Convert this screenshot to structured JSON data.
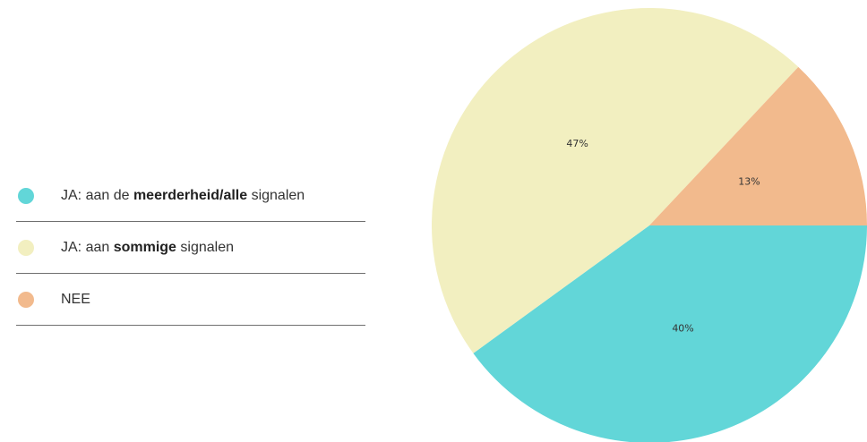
{
  "chart_data": {
    "type": "pie",
    "slices": [
      {
        "label_parts": [
          "JA: aan de ",
          "meerderheid/alle",
          " signalen"
        ],
        "value": 40,
        "value_label": "40%",
        "color": "#62d6d8"
      },
      {
        "label_parts": [
          "JA: aan ",
          "sommige",
          " signalen"
        ],
        "value": 47,
        "value_label": "47%",
        "color": "#f2efc0"
      },
      {
        "label_parts": [
          "NEE",
          "",
          ""
        ],
        "value": 13,
        "value_label": "13%",
        "color": "#f2ba8d"
      }
    ],
    "legend_position": "left"
  }
}
